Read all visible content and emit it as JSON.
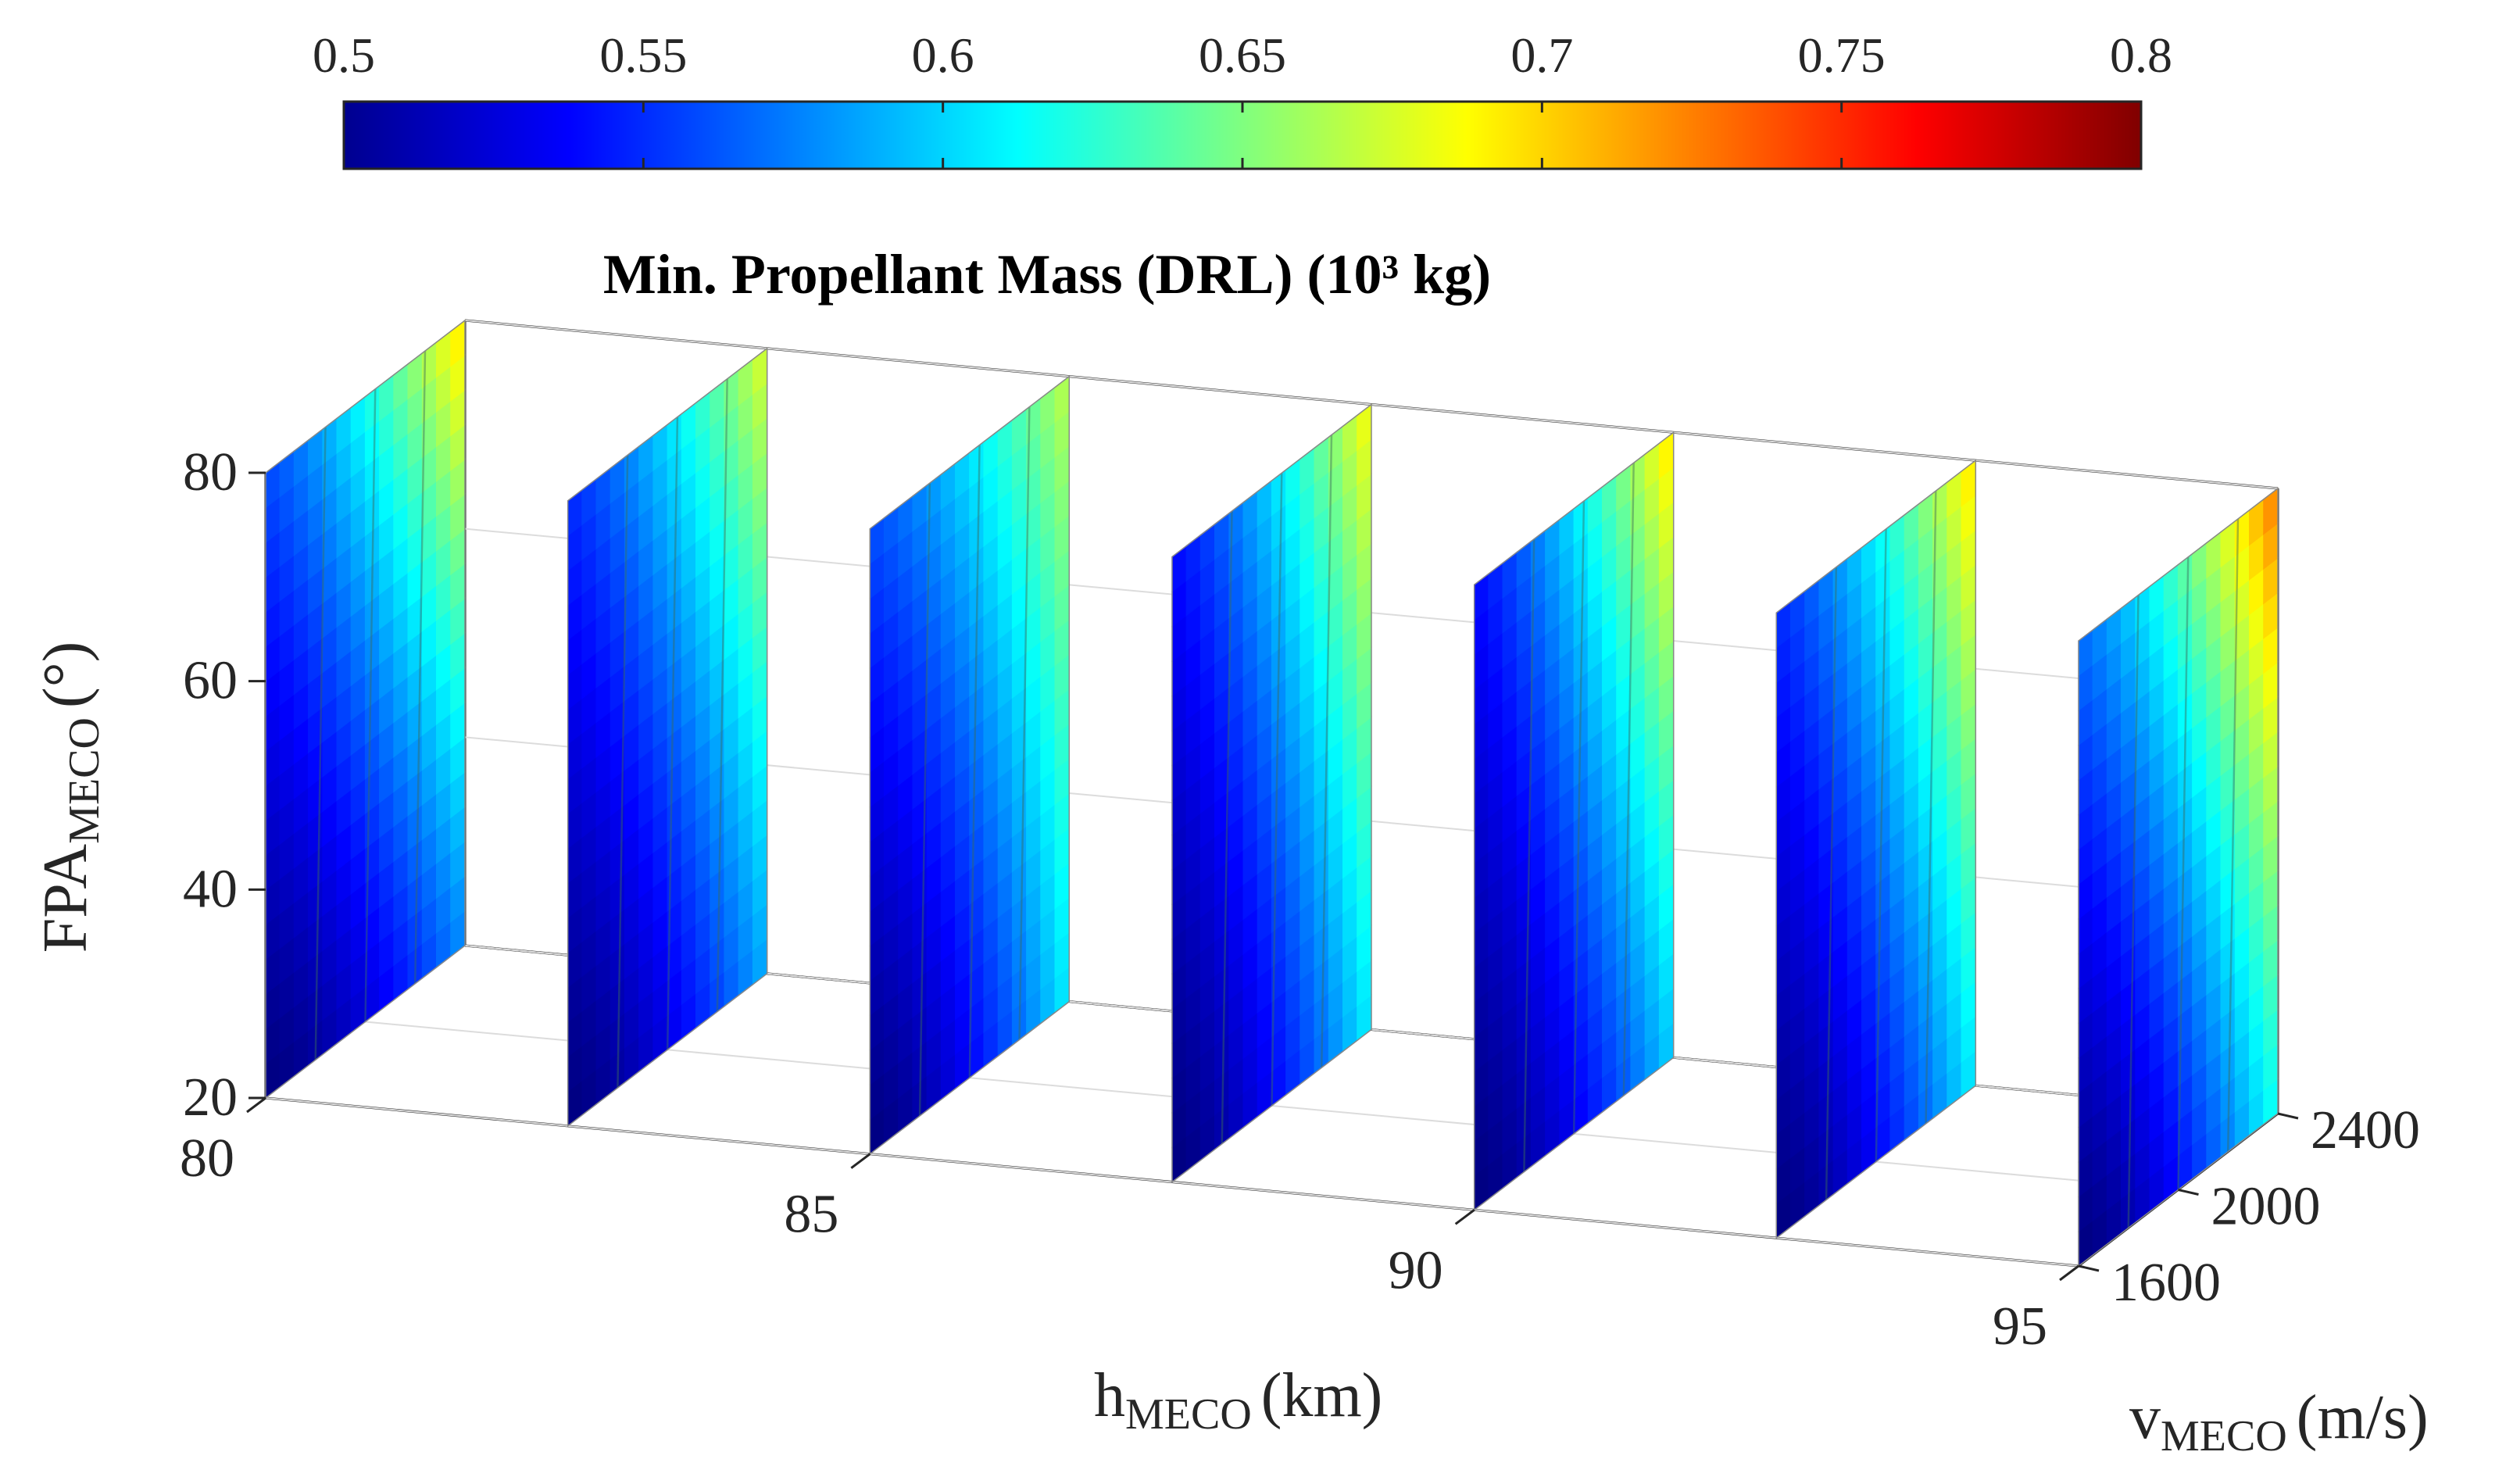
{
  "chart_data": {
    "type": "3d-slice-heatmap",
    "title": "Min. Propellant Mass (DRL) (10³ kg)",
    "colorbar": {
      "colormap": "jet",
      "range": [
        0.5,
        0.8
      ],
      "ticks": [
        "0.5",
        "0.55",
        "0.6",
        "0.65",
        "0.7",
        "0.75",
        "0.8"
      ],
      "placement": "top"
    },
    "axes": {
      "x": {
        "label_main": "h",
        "label_sub": "MECO",
        "label_unit": "(km)",
        "range": [
          80,
          95
        ],
        "ticks": [
          "80",
          "85",
          "90",
          "95"
        ]
      },
      "y": {
        "label_main": "v",
        "label_sub": "MECO",
        "label_unit": "(m/s)",
        "range": [
          1600,
          2400
        ],
        "ticks": [
          "1600",
          "2000",
          "2400"
        ]
      },
      "z": {
        "label_main": "FPA",
        "label_sub": "MECO",
        "label_unit": "(°)",
        "range": [
          20,
          80
        ],
        "ticks": [
          "20",
          "40",
          "60",
          "80"
        ]
      }
    },
    "grid": true,
    "slices_h_km": [
      80,
      82.5,
      85,
      87.5,
      90,
      92.5,
      95
    ],
    "slice_data": [
      {
        "h": 80,
        "bottom_low_v": 0.5,
        "bottom_high_v": 0.58,
        "top_low_v": 0.56,
        "top_high_v": 0.7
      },
      {
        "h": 82.5,
        "bottom_low_v": 0.5,
        "bottom_high_v": 0.59,
        "top_low_v": 0.55,
        "top_high_v": 0.68
      },
      {
        "h": 85,
        "bottom_low_v": 0.5,
        "bottom_high_v": 0.61,
        "top_low_v": 0.56,
        "top_high_v": 0.67
      },
      {
        "h": 87.5,
        "bottom_low_v": 0.5,
        "bottom_high_v": 0.61,
        "top_low_v": 0.54,
        "top_high_v": 0.69
      },
      {
        "h": 90,
        "bottom_low_v": 0.5,
        "bottom_high_v": 0.6,
        "top_low_v": 0.54,
        "top_high_v": 0.7
      },
      {
        "h": 92.5,
        "bottom_low_v": 0.5,
        "bottom_high_v": 0.61,
        "top_low_v": 0.55,
        "top_high_v": 0.7
      },
      {
        "h": 95,
        "bottom_low_v": 0.5,
        "bottom_high_v": 0.62,
        "top_low_v": 0.57,
        "top_high_v": 0.73
      }
    ]
  }
}
